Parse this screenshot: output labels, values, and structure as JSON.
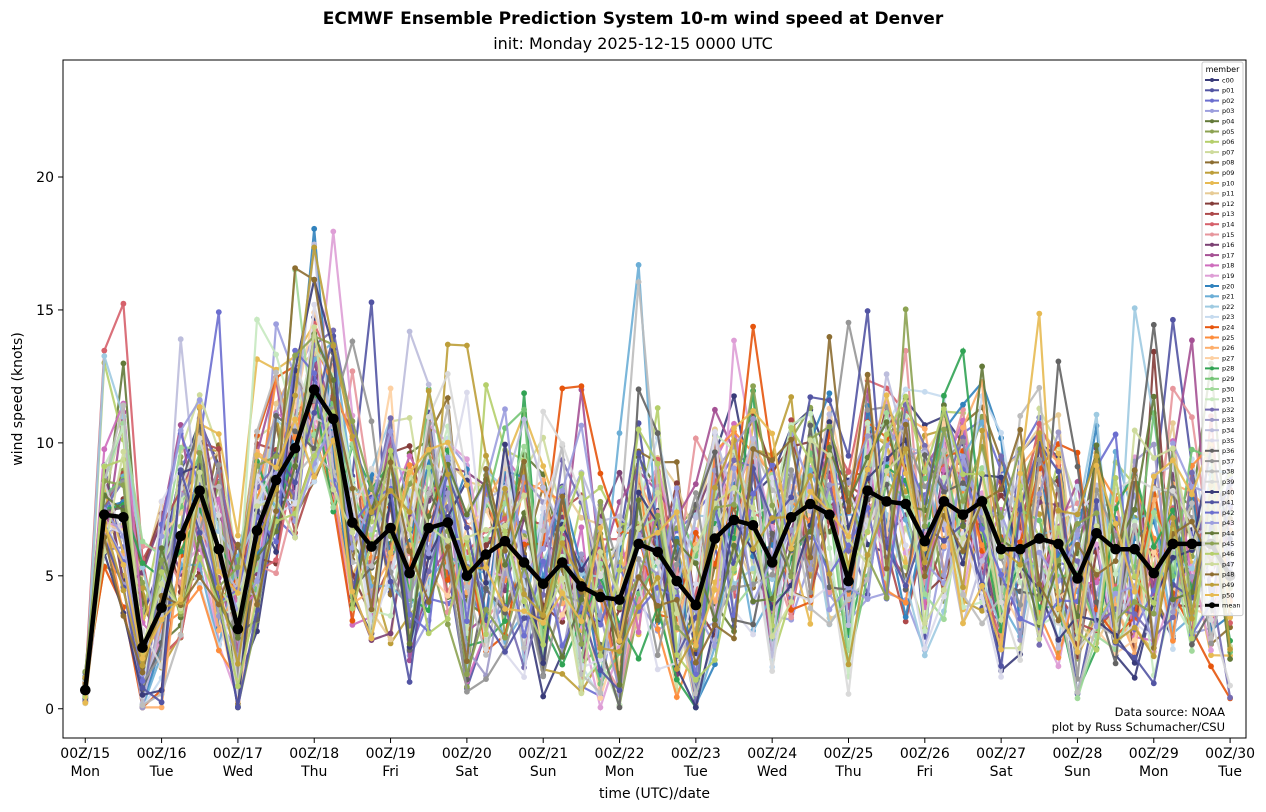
{
  "chart_data": {
    "type": "line",
    "title": "ECMWF Ensemble Prediction System 10-m wind speed at Denver",
    "subtitle": "init: Monday 2025-12-15 0000 UTC",
    "xlabel": "time (UTC)/date",
    "ylabel": "wind speed (knots)",
    "ylim": [
      -1.1,
      24.4
    ],
    "yticks": [
      0,
      5,
      10,
      15,
      20
    ],
    "xlim_hours": [
      -7,
      365
    ],
    "x_hours": [
      0,
      6,
      12,
      18,
      24,
      30,
      36,
      42,
      48,
      54,
      60,
      66,
      72,
      78,
      84,
      90,
      96,
      102,
      108,
      114,
      120,
      126,
      132,
      138,
      144,
      150,
      156,
      162,
      168,
      174,
      180,
      186,
      192,
      198,
      204,
      210,
      216,
      222,
      228,
      234,
      240,
      246,
      252,
      258,
      264,
      270,
      276,
      282,
      288,
      294,
      300,
      306,
      312,
      318,
      324,
      330,
      336,
      342,
      348,
      354,
      360
    ],
    "x_ticks": [
      {
        "hour": 0,
        "line1": "00Z/15",
        "line2": "Mon"
      },
      {
        "hour": 24,
        "line1": "00Z/16",
        "line2": "Tue"
      },
      {
        "hour": 48,
        "line1": "00Z/17",
        "line2": "Wed"
      },
      {
        "hour": 72,
        "line1": "00Z/18",
        "line2": "Thu"
      },
      {
        "hour": 96,
        "line1": "00Z/19",
        "line2": "Fri"
      },
      {
        "hour": 120,
        "line1": "00Z/20",
        "line2": "Sat"
      },
      {
        "hour": 144,
        "line1": "00Z/21",
        "line2": "Sun"
      },
      {
        "hour": 168,
        "line1": "00Z/22",
        "line2": "Mon"
      },
      {
        "hour": 192,
        "line1": "00Z/23",
        "line2": "Tue"
      },
      {
        "hour": 216,
        "line1": "00Z/24",
        "line2": "Wed"
      },
      {
        "hour": 240,
        "line1": "00Z/25",
        "line2": "Thu"
      },
      {
        "hour": 264,
        "line1": "00Z/26",
        "line2": "Fri"
      },
      {
        "hour": 288,
        "line1": "00Z/27",
        "line2": "Sat"
      },
      {
        "hour": 312,
        "line1": "00Z/28",
        "line2": "Sun"
      },
      {
        "hour": 336,
        "line1": "00Z/29",
        "line2": "Mon"
      },
      {
        "hour": 360,
        "line1": "00Z/30",
        "line2": "Tue"
      }
    ],
    "legend_title": "member",
    "legend_location": "top-right",
    "members": [
      {
        "name": "c00",
        "color": "#393b79"
      },
      {
        "name": "p01",
        "color": "#5254a3"
      },
      {
        "name": "p02",
        "color": "#6b6ecf"
      },
      {
        "name": "p03",
        "color": "#9c9ede"
      },
      {
        "name": "p04",
        "color": "#637939"
      },
      {
        "name": "p05",
        "color": "#8ca252"
      },
      {
        "name": "p06",
        "color": "#b5cf6b"
      },
      {
        "name": "p07",
        "color": "#cedb9c"
      },
      {
        "name": "p08",
        "color": "#8c6d31"
      },
      {
        "name": "p09",
        "color": "#bd9e39"
      },
      {
        "name": "p10",
        "color": "#e7ba52"
      },
      {
        "name": "p11",
        "color": "#e7cb94"
      },
      {
        "name": "p12",
        "color": "#843c39"
      },
      {
        "name": "p13",
        "color": "#ad494a"
      },
      {
        "name": "p14",
        "color": "#d6616b"
      },
      {
        "name": "p15",
        "color": "#e7969c"
      },
      {
        "name": "p16",
        "color": "#7b4173"
      },
      {
        "name": "p17",
        "color": "#a55194"
      },
      {
        "name": "p18",
        "color": "#ce6dbd"
      },
      {
        "name": "p19",
        "color": "#de9ed6"
      },
      {
        "name": "p20",
        "color": "#3182bd"
      },
      {
        "name": "p21",
        "color": "#6baed6"
      },
      {
        "name": "p22",
        "color": "#9ecae1"
      },
      {
        "name": "p23",
        "color": "#c6dbef"
      },
      {
        "name": "p24",
        "color": "#e6550d"
      },
      {
        "name": "p25",
        "color": "#fd8d3c"
      },
      {
        "name": "p26",
        "color": "#fdae6b"
      },
      {
        "name": "p27",
        "color": "#fdd0a2"
      },
      {
        "name": "p28",
        "color": "#31a354"
      },
      {
        "name": "p29",
        "color": "#74c476"
      },
      {
        "name": "p30",
        "color": "#a1d99b"
      },
      {
        "name": "p31",
        "color": "#c7e9c0"
      },
      {
        "name": "p32",
        "color": "#756bb1"
      },
      {
        "name": "p33",
        "color": "#9e9ac8"
      },
      {
        "name": "p34",
        "color": "#bcbddc"
      },
      {
        "name": "p35",
        "color": "#dadaeb"
      },
      {
        "name": "p36",
        "color": "#636363"
      },
      {
        "name": "p37",
        "color": "#969696"
      },
      {
        "name": "p38",
        "color": "#bdbdbd"
      },
      {
        "name": "p39",
        "color": "#d9d9d9"
      },
      {
        "name": "p40",
        "color": "#393b79"
      },
      {
        "name": "p41",
        "color": "#5254a3"
      },
      {
        "name": "p42",
        "color": "#6b6ecf"
      },
      {
        "name": "p43",
        "color": "#9c9ede"
      },
      {
        "name": "p44",
        "color": "#637939"
      },
      {
        "name": "p45",
        "color": "#8ca252"
      },
      {
        "name": "p46",
        "color": "#b5cf6b"
      },
      {
        "name": "p47",
        "color": "#cedb9c"
      },
      {
        "name": "p48",
        "color": "#8c6d31"
      },
      {
        "name": "p49",
        "color": "#bd9e39"
      },
      {
        "name": "p50",
        "color": "#e7ba52"
      }
    ],
    "mean": {
      "name": "mean",
      "color": "#000000",
      "values": [
        0.7,
        7.3,
        7.2,
        2.3,
        3.8,
        6.5,
        8.2,
        6.0,
        3.0,
        6.7,
        8.6,
        9.8,
        12.0,
        10.9,
        7.0,
        6.1,
        6.8,
        5.1,
        6.8,
        7.0,
        5.0,
        5.8,
        6.3,
        5.5,
        4.7,
        5.5,
        4.6,
        4.2,
        4.1,
        6.2,
        5.9,
        4.8,
        3.9,
        6.4,
        7.1,
        6.9,
        5.5,
        7.2,
        7.7,
        7.3,
        4.8,
        8.2,
        7.8,
        7.7,
        6.3,
        7.8,
        7.3,
        7.8,
        6.0,
        6.0,
        6.4,
        6.2,
        4.9,
        6.6,
        6.0,
        6.0,
        5.1,
        6.2,
        6.2,
        6.2,
        5.0
      ]
    },
    "annotations": [
      "Data source: NOAA",
      "plot by Russ Schumacher/CSU"
    ]
  }
}
